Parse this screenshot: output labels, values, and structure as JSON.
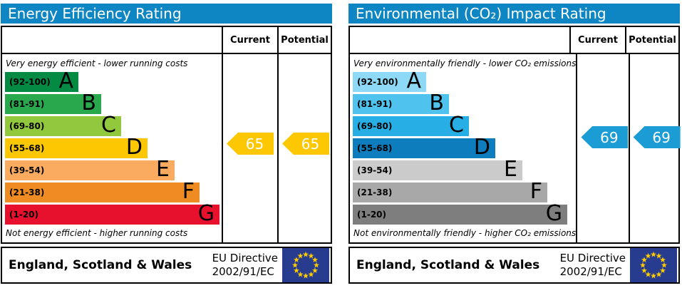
{
  "panels": [
    {
      "title": "Energy Efficiency Rating",
      "header_color": "#0e86c4",
      "columns": {
        "current": "Current",
        "potential": "Potential"
      },
      "top_caption": "Very energy efficient - lower running costs",
      "bottom_caption": "Not energy efficient - higher running costs",
      "bands": [
        {
          "range": "(92-100)",
          "letter": "A",
          "color": "#048a42"
        },
        {
          "range": "(81-91)",
          "letter": "B",
          "color": "#2aa84e"
        },
        {
          "range": "(69-80)",
          "letter": "C",
          "color": "#92c83e"
        },
        {
          "range": "(55-68)",
          "letter": "D",
          "color": "#fdc702"
        },
        {
          "range": "(39-54)",
          "letter": "E",
          "color": "#fbab5f"
        },
        {
          "range": "(21-38)",
          "letter": "F",
          "color": "#ee8b22"
        },
        {
          "range": "(1-20)",
          "letter": "G",
          "color": "#e8112d"
        }
      ],
      "current": {
        "value": "65",
        "color": "#fdc702"
      },
      "potential": {
        "value": "65",
        "color": "#fdc702"
      },
      "footer": {
        "region": "England, Scotland & Wales",
        "directive_line1": "EU Directive",
        "directive_line2": "2002/91/EC"
      }
    },
    {
      "title": "Environmental (CO₂) Impact Rating",
      "header_color": "#0e86c4",
      "columns": {
        "current": "Current",
        "potential": "Potential"
      },
      "top_caption": "Very environmentally friendly - lower CO₂ emissions",
      "bottom_caption": "Not environmentally friendly - higher CO₂ emissions",
      "bands": [
        {
          "range": "(92-100)",
          "letter": "A",
          "color": "#8ed9f5"
        },
        {
          "range": "(81-91)",
          "letter": "B",
          "color": "#4fc2ee"
        },
        {
          "range": "(69-80)",
          "letter": "C",
          "color": "#27afe5"
        },
        {
          "range": "(55-68)",
          "letter": "D",
          "color": "#0d7dbe"
        },
        {
          "range": "(39-54)",
          "letter": "E",
          "color": "#cbcbcb"
        },
        {
          "range": "(21-38)",
          "letter": "F",
          "color": "#a8a8a8"
        },
        {
          "range": "(1-20)",
          "letter": "G",
          "color": "#7e7e7e"
        }
      ],
      "current": {
        "value": "69",
        "color": "#1b9cd5"
      },
      "potential": {
        "value": "69",
        "color": "#1b9cd5"
      },
      "footer": {
        "region": "England, Scotland & Wales",
        "directive_line1": "EU Directive",
        "directive_line2": "2002/91/EC"
      }
    }
  ],
  "eu_flag": {
    "field_color": "#283c8f",
    "star_color": "#ffcc00"
  },
  "chart_data": [
    {
      "type": "bar",
      "title": "Energy Efficiency Rating",
      "categories": [
        "A",
        "B",
        "C",
        "D",
        "E",
        "F",
        "G"
      ],
      "band_ranges": [
        "92-100",
        "81-91",
        "69-80",
        "55-68",
        "39-54",
        "21-38",
        "1-20"
      ],
      "band_colors": [
        "#048a42",
        "#2aa84e",
        "#92c83e",
        "#fdc702",
        "#fbab5f",
        "#ee8b22",
        "#e8112d"
      ],
      "series": [
        {
          "name": "Current",
          "values": [
            65
          ]
        },
        {
          "name": "Potential",
          "values": [
            65
          ]
        }
      ],
      "ylim": [
        1,
        100
      ],
      "top_note": "Very energy efficient - lower running costs",
      "bottom_note": "Not energy efficient - higher running costs",
      "footer": "England, Scotland & Wales — EU Directive 2002/91/EC"
    },
    {
      "type": "bar",
      "title": "Environmental (CO₂) Impact Rating",
      "categories": [
        "A",
        "B",
        "C",
        "D",
        "E",
        "F",
        "G"
      ],
      "band_ranges": [
        "92-100",
        "81-91",
        "69-80",
        "55-68",
        "39-54",
        "21-38",
        "1-20"
      ],
      "band_colors": [
        "#8ed9f5",
        "#4fc2ee",
        "#27afe5",
        "#0d7dbe",
        "#cbcbcb",
        "#a8a8a8",
        "#7e7e7e"
      ],
      "series": [
        {
          "name": "Current",
          "values": [
            69
          ]
        },
        {
          "name": "Potential",
          "values": [
            69
          ]
        }
      ],
      "ylim": [
        1,
        100
      ],
      "top_note": "Very environmentally friendly - lower CO₂ emissions",
      "bottom_note": "Not environmentally friendly - higher CO₂ emissions",
      "footer": "England, Scotland & Wales — EU Directive 2002/91/EC"
    }
  ]
}
